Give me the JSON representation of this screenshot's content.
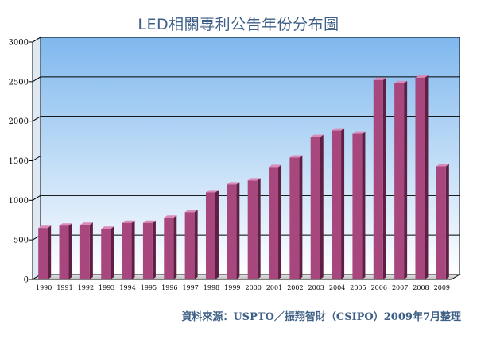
{
  "chart_data": {
    "type": "bar",
    "title": "LED相關專利公告年份分布圖",
    "categories": [
      "1990",
      "1991",
      "1992",
      "1993",
      "1994",
      "1995",
      "1996",
      "1997",
      "1998",
      "1999",
      "2000",
      "2001",
      "2002",
      "2003",
      "2004",
      "2005",
      "2006",
      "2007",
      "2008",
      "2009"
    ],
    "values": [
      650,
      680,
      690,
      640,
      715,
      715,
      780,
      850,
      1100,
      1200,
      1250,
      1420,
      1540,
      1800,
      1880,
      1840,
      2520,
      2480,
      2550,
      1430
    ],
    "ylim": [
      0,
      3000
    ],
    "yticks": [
      0,
      500,
      1000,
      1500,
      2000,
      2500,
      3000
    ],
    "grid": true,
    "colors": {
      "bar_front": "#a8477e",
      "bar_top": "#d98ab6",
      "bar_side": "#5e1f44",
      "bg_top": "#7fb8ee",
      "bg_bottom": "#ffffff",
      "title": "#3e5f86"
    }
  },
  "source_note": "資料來源：USPTO／振翔智財（CSIPO）2009年7月整理"
}
